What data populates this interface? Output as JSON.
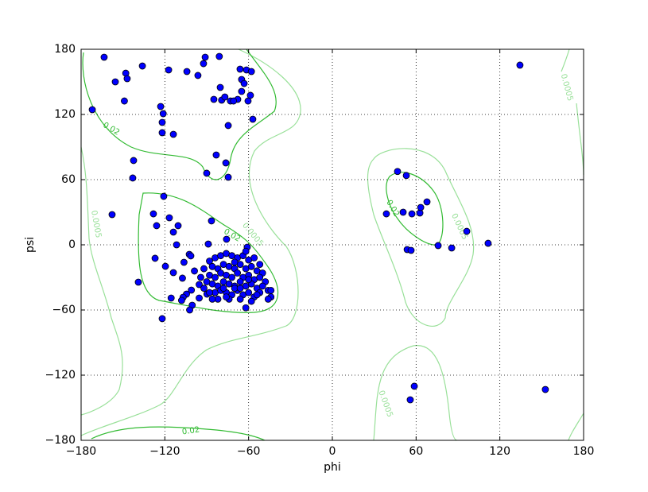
{
  "chart_data": {
    "type": "scatter",
    "xlabel": "phi",
    "ylabel": "psi",
    "xlim": [
      -180,
      180
    ],
    "ylim": [
      -180,
      180
    ],
    "xticks": [
      {
        "value": -180,
        "label": "−180"
      },
      {
        "value": -120,
        "label": "−120"
      },
      {
        "value": -60,
        "label": "−60"
      },
      0,
      60,
      120,
      180
    ],
    "yticks": [
      {
        "value": -180,
        "label": "−180"
      },
      {
        "value": -120,
        "label": "−120"
      },
      {
        "value": -60,
        "label": "−60"
      },
      0,
      60,
      120,
      180
    ],
    "grid": true,
    "color": "#0000ff",
    "contours": [
      {
        "level": 0.02,
        "color": "#33bb33"
      },
      {
        "level": 0.0005,
        "color": "#99e099"
      }
    ],
    "x": [
      -163.5,
      -136.1,
      -172,
      -155.5,
      -148,
      -147,
      -149,
      -117.3,
      -104.2,
      -96.3,
      -91.1,
      -81,
      -92.3,
      -66.1,
      -61.5,
      -58,
      -65,
      -63.2,
      -80.3,
      -65,
      -67.8,
      -84.9,
      -79.3,
      -77,
      -73,
      -70.8,
      -60.4,
      -58.7,
      -57,
      -74.6,
      -123,
      -121.2,
      -121.9,
      -121.9,
      -113.9,
      -83.2,
      -76.3,
      -142.4,
      -143,
      -90,
      -74.6,
      -120.8,
      -157.8,
      -128.2,
      -116.8,
      -125.9,
      -110.5,
      -86.6,
      -113.9,
      -75.8,
      -88.9,
      -111.6,
      -61,
      -102.5,
      -101.4,
      -127,
      -106.3,
      -119.6,
      -113.9,
      -139,
      -107.4,
      -98.8,
      -94.3,
      -95.4,
      -89.8,
      -101,
      -104.5,
      -106.9,
      -108,
      -115.5,
      -95.4,
      -100.4,
      -102.2,
      -121.9,
      -88,
      -84,
      -80,
      -76,
      -72,
      -68,
      -64,
      -60,
      -56,
      -52,
      -86,
      -82,
      -78,
      -74,
      -70,
      -66,
      -62,
      -58,
      -54,
      -50,
      -88,
      -84,
      -80,
      -76,
      -72,
      -68,
      -64,
      -60,
      -56,
      -52,
      -48,
      -86,
      -82,
      -78,
      -74,
      -70,
      -66,
      -62,
      -58,
      -54,
      -50,
      -46,
      -84,
      -80,
      -76,
      -72,
      -68,
      -64,
      -60,
      -56,
      -52,
      -44,
      -88,
      -82,
      -74,
      -66,
      -58,
      -62,
      -70,
      -78,
      -66,
      -60,
      -70,
      -62,
      -76,
      -86,
      -54,
      -90,
      -92,
      -92,
      -44,
      -46,
      46.7,
      53,
      38.7,
      50.7,
      57,
      62.7,
      63.3,
      67.8,
      96.3,
      111.6,
      53.6,
      56.4,
      75.8,
      85.5,
      134.4,
      152.6,
      58.7,
      55.8
    ],
    "values": [
      172.7,
      164.6,
      124.4,
      150,
      158,
      152.9,
      132.4,
      161,
      159.5,
      155.9,
      172.7,
      173.4,
      166.8,
      161.7,
      161,
      159.5,
      152.2,
      148.5,
      144.9,
      141.2,
      133.9,
      133.9,
      133.2,
      136.1,
      132.4,
      132.4,
      132.4,
      137.6,
      115.6,
      109.8,
      127.3,
      120.7,
      112.7,
      103.2,
      101.7,
      82.7,
      75.4,
      77.6,
      61.5,
      65.9,
      62.2,
      44.6,
      27.8,
      28.5,
      24.9,
      17.6,
      17.6,
      22,
      11.7,
      5.1,
      0.7,
      0,
      -2.2,
      -8.8,
      -10.2,
      -12.4,
      -16.1,
      -19.8,
      -25.6,
      -34.4,
      -30.7,
      -24.1,
      -30,
      -36.6,
      -45.4,
      -41.7,
      -45.4,
      -48.3,
      -51.2,
      -49,
      -49,
      -55.6,
      -60,
      -68,
      -15,
      -12,
      -10,
      -8,
      -10,
      -12,
      -10,
      -14,
      -12,
      -18,
      -20,
      -22,
      -18,
      -20,
      -22,
      -18,
      -22,
      -20,
      -24,
      -26,
      -28,
      -30,
      -26,
      -28,
      -30,
      -26,
      -30,
      -28,
      -32,
      -30,
      -34,
      -36,
      -38,
      -34,
      -36,
      -38,
      -34,
      -38,
      -36,
      -40,
      -38,
      -42,
      -44,
      -42,
      -44,
      -46,
      -42,
      -46,
      -44,
      -48,
      -44,
      -48,
      -44,
      -50,
      -50,
      -50,
      -52,
      -58,
      -40,
      -40,
      -40,
      -32,
      -16,
      -6,
      -48,
      -50,
      -46,
      -34,
      -22,
      -40,
      -42,
      -50,
      67.5,
      63.8,
      28.5,
      30,
      28.5,
      29.3,
      34.4,
      39.5,
      12.4,
      1.4,
      -4.4,
      -5.1,
      -0.7,
      -2.9,
      165.4,
      -133.2,
      -130.2,
      -142.7
    ]
  }
}
